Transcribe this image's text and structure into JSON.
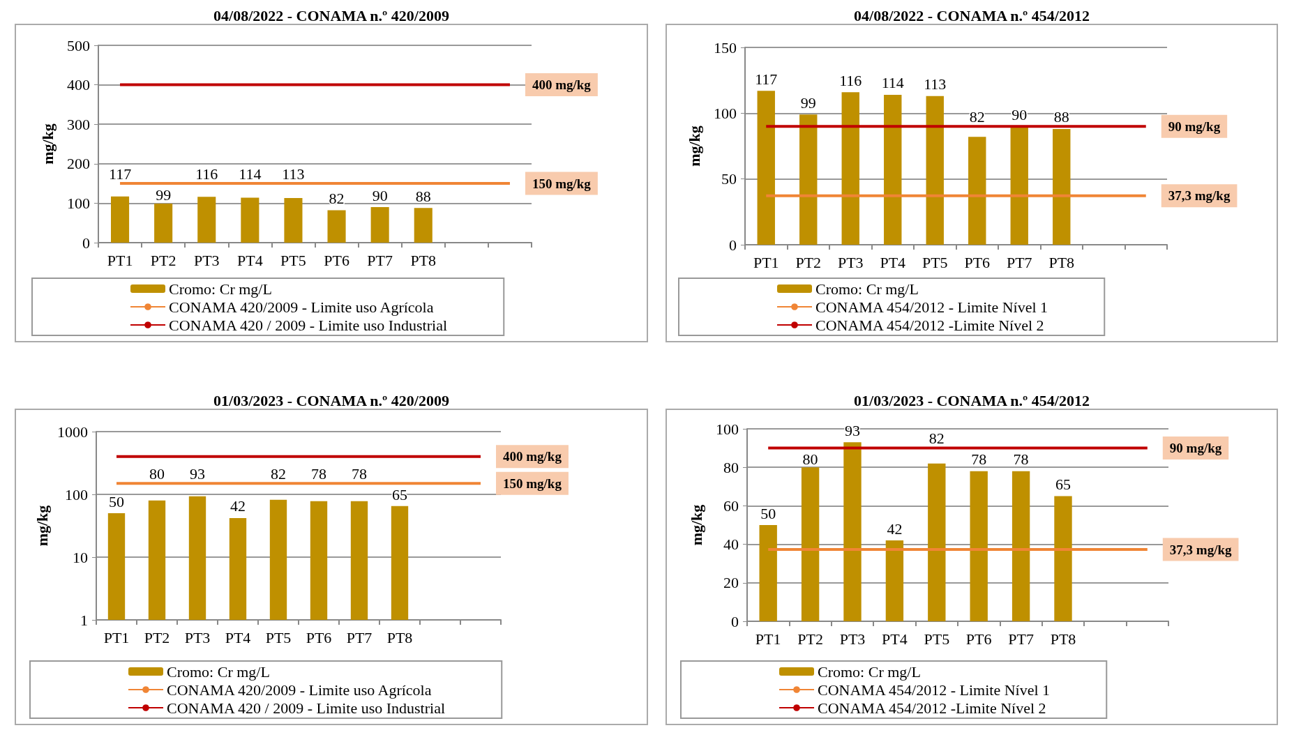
{
  "chart_data": [
    {
      "type": "bar",
      "title": "04/08/2022 - CONAMA n.º 420/2009",
      "ylabel": "mg/kg",
      "categories": [
        "PT1",
        "PT2",
        "PT3",
        "PT4",
        "PT5",
        "PT6",
        "PT7",
        "PT8",
        null,
        null
      ],
      "series": [
        {
          "name": "Cromo: Cr mg/L",
          "color": "#bf9000",
          "values": [
            117,
            99,
            116,
            114,
            113,
            82,
            90,
            88,
            null,
            null
          ],
          "value_labels": [
            "117",
            "99",
            "116",
            "114",
            "113",
            "82",
            "90",
            "88",
            null,
            null
          ]
        },
        {
          "type": "line",
          "name": "CONAMA 420/2009 - Limite uso Agrícola",
          "color": "#f08535",
          "values": [
            150,
            150,
            150,
            150,
            150,
            150,
            150,
            150,
            150,
            150
          ]
        },
        {
          "type": "line",
          "name": "CONAMA 420 / 2009 - Limite uso Industrial",
          "color": "#c00000",
          "values": [
            400,
            400,
            400,
            400,
            400,
            400,
            400,
            400,
            400,
            400
          ]
        }
      ],
      "annotations": [
        "150 mg/kg",
        "400 mg/kg"
      ],
      "ylim": [
        0,
        500
      ],
      "yticks": [
        0,
        100,
        200,
        300,
        400,
        500
      ],
      "grid": "y",
      "legend": "bottom",
      "marker": "none"
    },
    {
      "type": "bar",
      "title": "04/08/2022 - CONAMA n.º 454/2012",
      "ylabel": "mg/kg",
      "categories": [
        "PT1",
        "PT2",
        "PT3",
        "PT4",
        "PT5",
        "PT6",
        "PT7",
        "PT8",
        null,
        null
      ],
      "series": [
        {
          "name": "Cromo: Cr mg/L",
          "color": "#bf9000",
          "values": [
            117,
            99,
            116,
            114,
            113,
            82,
            90,
            88,
            null,
            null
          ],
          "value_labels": [
            "117",
            "99",
            "116",
            "114",
            "113",
            "82",
            "90",
            "88",
            null,
            null
          ]
        },
        {
          "type": "line",
          "name": "CONAMA 454/2012 - Limite Nível 1",
          "color": "#f08535",
          "values": [
            37.3,
            37.3,
            37.3,
            37.3,
            37.3,
            37.3,
            37.3,
            37.3,
            37.3,
            37.3
          ]
        },
        {
          "type": "line",
          "name": "CONAMA 454/2012 -Limite Nível 2",
          "color": "#c00000",
          "values": [
            90,
            90,
            90,
            90,
            90,
            90,
            90,
            90,
            90,
            90
          ]
        }
      ],
      "annotations": [
        "37,3 mg/kg",
        "90 mg/kg"
      ],
      "ylim": [
        0,
        150
      ],
      "yticks": [
        0,
        50,
        100,
        150
      ],
      "grid": "y",
      "legend": "bottom",
      "marker": "none"
    },
    {
      "type": "bar",
      "title": "01/03/2023 - CONAMA n.º 420/2009",
      "ylabel": "mg/kg",
      "categories": [
        "PT1",
        "PT2",
        "PT3",
        "PT4",
        "PT5",
        "PT6",
        "PT7",
        "PT8",
        null,
        null
      ],
      "series": [
        {
          "name": "Cromo: Cr mg/L",
          "color": "#bf9000",
          "values": [
            50,
            80,
            93,
            42,
            82,
            78,
            78,
            65,
            null,
            null
          ],
          "value_labels": [
            "50",
            "80",
            "93",
            "42",
            "82",
            "78",
            "78",
            "65",
            null,
            null
          ]
        },
        {
          "type": "line",
          "name": "CONAMA 420/2009 - Limite uso Agrícola",
          "color": "#f08535",
          "values": [
            150,
            150,
            150,
            150,
            150,
            150,
            150,
            150,
            150,
            150
          ]
        },
        {
          "type": "line",
          "name": "CONAMA 420 / 2009 - Limite uso Industrial",
          "color": "#c00000",
          "values": [
            400,
            400,
            400,
            400,
            400,
            400,
            400,
            400,
            400,
            400
          ]
        }
      ],
      "annotations": [
        "150 mg/kg",
        "400 mg/kg"
      ],
      "ylim": [
        1,
        1000
      ],
      "yticks": [
        1,
        10,
        100,
        1000
      ],
      "log": true,
      "grid": "y",
      "legend": "bottom",
      "marker": "none"
    },
    {
      "type": "bar",
      "title": "01/03/2023 - CONAMA n.º 454/2012",
      "ylabel": "mg/kg",
      "categories": [
        "PT1",
        "PT2",
        "PT3",
        "PT4",
        "PT5",
        "PT6",
        "PT7",
        "PT8",
        null,
        null
      ],
      "series": [
        {
          "name": "Cromo: Cr mg/L",
          "color": "#bf9000",
          "values": [
            50,
            80,
            93,
            42,
            82,
            78,
            78,
            65,
            null,
            null
          ],
          "value_labels": [
            "50",
            "80",
            "93",
            "42",
            "82",
            "78",
            "78",
            "65",
            null,
            null
          ]
        },
        {
          "type": "line",
          "name": "CONAMA 454/2012 - Limite Nível 1",
          "color": "#f08535",
          "values": [
            37.3,
            37.3,
            37.3,
            37.3,
            37.3,
            37.3,
            37.3,
            37.3,
            37.3,
            37.3
          ]
        },
        {
          "type": "line",
          "name": "CONAMA 454/2012 -Limite Nível 2",
          "color": "#c00000",
          "values": [
            90,
            90,
            90,
            90,
            90,
            90,
            90,
            90,
            90,
            90
          ]
        }
      ],
      "annotations": [
        "37,3 mg/kg",
        "90 mg/kg"
      ],
      "ylim": [
        0,
        100
      ],
      "yticks": [
        0,
        20,
        40,
        60,
        80,
        100
      ],
      "grid": "y",
      "legend": "bottom",
      "marker": "none"
    }
  ]
}
